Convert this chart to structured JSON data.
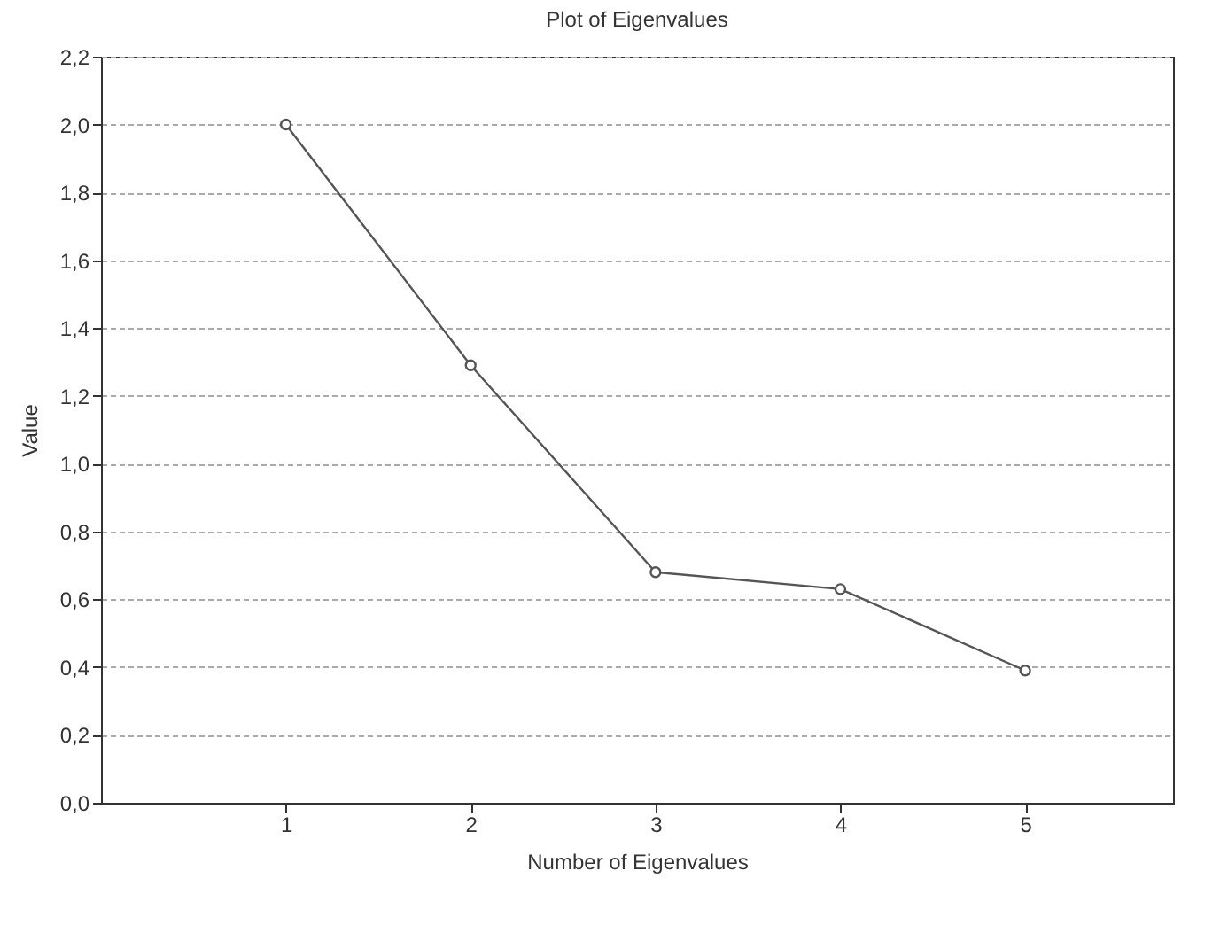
{
  "chart_data": {
    "type": "line",
    "title": "Plot of Eigenvalues",
    "xlabel": "Number of Eigenvalues",
    "ylabel": "Value",
    "x": [
      1,
      2,
      3,
      4,
      5
    ],
    "series": [
      {
        "color": "#555555",
        "values": [
          2.0,
          1.29,
          0.68,
          0.63,
          0.39
        ]
      }
    ],
    "xlim": [
      0,
      5.8
    ],
    "xticks": [
      1,
      2,
      3,
      4,
      5
    ],
    "ylim": [
      0,
      2.2
    ],
    "yticks": [
      {
        "value": 0,
        "label": "0,0"
      },
      {
        "value": 0.2,
        "label": "0,2"
      },
      {
        "value": 0.4,
        "label": "0,4"
      },
      {
        "value": 0.6,
        "label": "0,6"
      },
      {
        "value": 0.8,
        "label": "0,8"
      },
      {
        "value": 1.0,
        "label": "1,0"
      },
      {
        "value": 1.2,
        "label": "1,2"
      },
      {
        "value": 1.4,
        "label": "1,4"
      },
      {
        "value": 1.6,
        "label": "1,6"
      },
      {
        "value": 1.8,
        "label": "1,8"
      },
      {
        "value": 2.0,
        "label": "2,0"
      },
      {
        "value": 2.2,
        "label": "2,2"
      }
    ],
    "grid": "y",
    "marker": "circle",
    "line_style": "solid"
  }
}
